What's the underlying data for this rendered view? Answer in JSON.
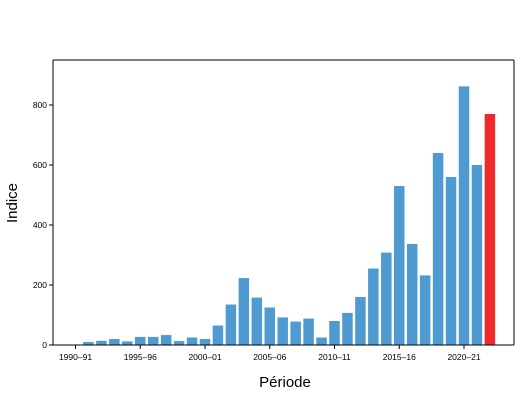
{
  "chart_data": {
    "type": "bar",
    "title": "",
    "xlabel": "Période",
    "ylabel": "Indice",
    "categories": [
      "1990–91",
      "1991–92",
      "1992–93",
      "1993–94",
      "1994–95",
      "1995–96",
      "1996–97",
      "1997–98",
      "1998–99",
      "1999–00",
      "2000–01",
      "2001–02",
      "2002–03",
      "2003–04",
      "2004–05",
      "2005–06",
      "2006–07",
      "2007–08",
      "2008–09",
      "2009–10",
      "2010–11",
      "2011–12",
      "2012–13",
      "2013–14",
      "2014–15",
      "2015–16",
      "2016–17",
      "2017–18",
      "2018–19",
      "2019–20",
      "2020–21",
      "2021–22",
      "2022–23"
    ],
    "values": [
      0,
      10,
      14,
      20,
      12,
      27,
      27,
      33,
      13,
      25,
      20,
      65,
      135,
      223,
      158,
      125,
      92,
      78,
      88,
      25,
      80,
      107,
      160,
      255,
      308,
      530,
      337,
      232,
      640,
      560,
      862,
      600,
      770
    ],
    "highlight_index": 32,
    "x_tick_labels": [
      "1990–91",
      "1995–96",
      "2000–01",
      "2005–06",
      "2010–11",
      "2015–16",
      "2020–21"
    ],
    "x_tick_indices": [
      0,
      5,
      10,
      15,
      20,
      25,
      30
    ],
    "y_ticks": [
      0,
      200,
      400,
      600,
      800
    ],
    "ylim": [
      0,
      950
    ],
    "grid": false,
    "legend": "none",
    "colors": {
      "bar": "#4f9bd1",
      "highlight": "#ee2a2a",
      "axis": "#000000"
    }
  }
}
